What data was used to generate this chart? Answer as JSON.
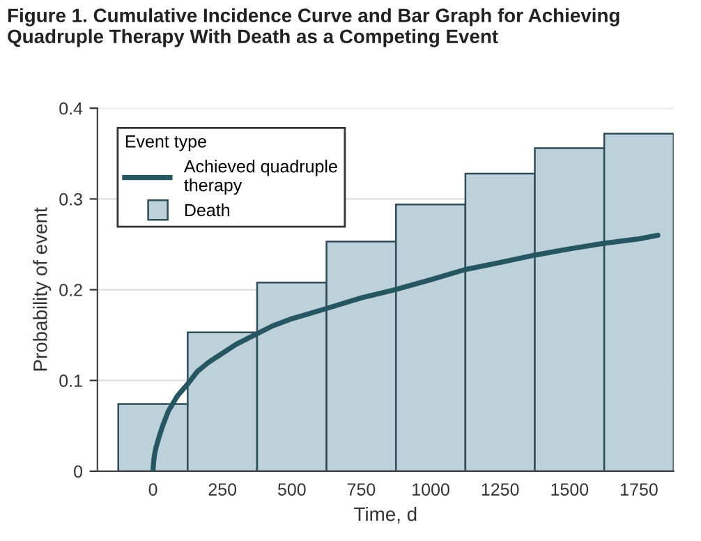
{
  "chart_data": {
    "type": "histogram",
    "title": "Figure 1. Cumulative Incidence Curve and Bar Graph for Achieving Quadruple Therapy With Death as a Competing Event",
    "xlabel": "Time, d",
    "ylabel": "Probability of event",
    "legend_title": "Event type",
    "legend": "top left",
    "grid": "y",
    "xlim": [
      -200,
      1875
    ],
    "xticks": [
      0,
      250,
      500,
      750,
      1000,
      1250,
      1500,
      1750
    ],
    "ylim": [
      0,
      0.4
    ],
    "yticks": [
      0,
      0.1,
      0.2,
      0.3,
      0.4
    ],
    "series": [
      {
        "name": "Achieved quadruple therapy",
        "type": "line",
        "color": "#265661",
        "x": [
          0,
          2,
          5,
          10,
          22,
          35,
          55,
          88,
          122,
          160,
          200,
          250,
          300,
          372,
          430,
          500,
          622,
          750,
          872,
          1000,
          1122,
          1250,
          1372,
          1500,
          1622,
          1750,
          1818
        ],
        "values": [
          0,
          0.009,
          0.017,
          0.025,
          0.038,
          0.05,
          0.066,
          0.083,
          0.095,
          0.11,
          0.12,
          0.13,
          0.14,
          0.151,
          0.16,
          0.168,
          0.179,
          0.191,
          0.2,
          0.211,
          0.222,
          0.23,
          0.238,
          0.245,
          0.251,
          0.256,
          0.26
        ]
      },
      {
        "name": "Death",
        "color": "#bdd1db",
        "bins": [
          -125,
          125,
          375,
          625,
          875,
          1125,
          1375,
          1625,
          1875
        ],
        "values": [
          0.074,
          0.153,
          0.208,
          0.253,
          0.294,
          0.328,
          0.356,
          0.372
        ]
      }
    ]
  }
}
